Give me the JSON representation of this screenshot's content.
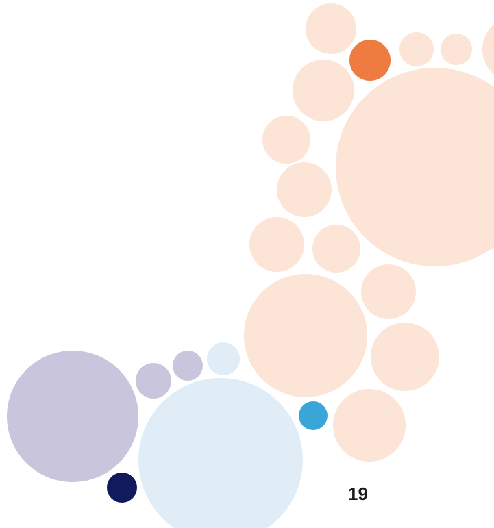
{
  "page": {
    "number": "19"
  },
  "palette": {
    "peach": "#fce4d6",
    "orange": "#ee7b40",
    "lavender": "#c9c5dc",
    "light_blue": "#e1edf6",
    "cyan": "#3aa6d8",
    "navy": "#111b5c"
  },
  "decoration": {
    "description_icon": "bubble-cluster-graphic"
  }
}
